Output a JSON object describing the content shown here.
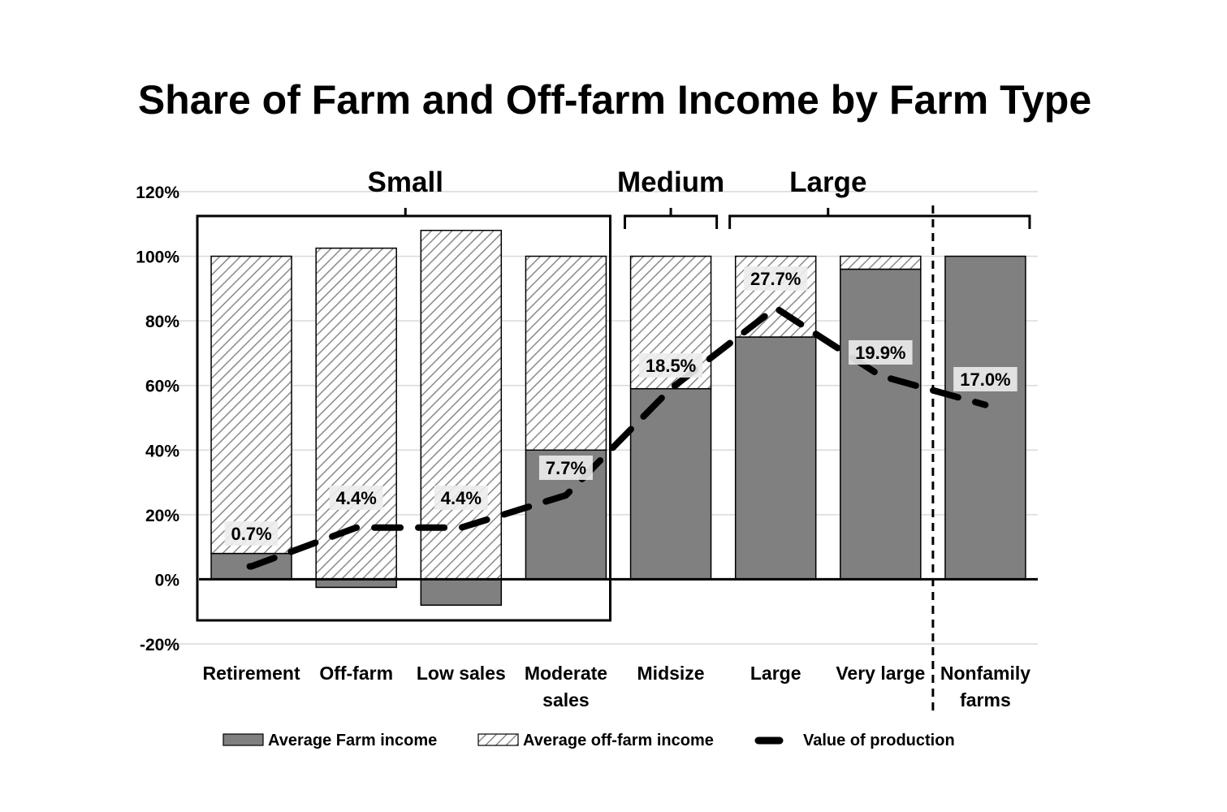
{
  "chart_data": {
    "type": "bar",
    "title": "Share of Farm and Off-farm Income by Farm Type",
    "categories": [
      [
        "Retirement"
      ],
      [
        "Off-farm"
      ],
      [
        "Low sales"
      ],
      [
        "Moderate",
        "sales"
      ],
      [
        "Midsize"
      ],
      [
        "Large"
      ],
      [
        "Very large"
      ],
      [
        "Nonfamily",
        "farms"
      ]
    ],
    "series": [
      {
        "name": "Average Farm income",
        "kind": "bar-solid",
        "color": "#808080",
        "values": [
          8,
          -2.5,
          -8,
          40,
          59,
          75,
          96,
          100
        ]
      },
      {
        "name": "Average off-farm income",
        "kind": "bar-hatched",
        "color": "#ffffff",
        "values": [
          92,
          102.5,
          108,
          60,
          41,
          25,
          4,
          0
        ]
      },
      {
        "name": "Value of production",
        "kind": "line-dashed",
        "color": "#000000",
        "values": [
          0.7,
          4.4,
          4.4,
          7.7,
          18.5,
          27.7,
          19.9,
          17.0
        ],
        "labels": [
          "0.7%",
          "4.4%",
          "4.4%",
          "7.7%",
          "18.5%",
          "27.7%",
          "19.9%",
          "17.0%"
        ],
        "line_path_y": [
          4,
          16,
          16,
          26,
          59,
          84,
          63,
          54
        ]
      }
    ],
    "ylim": [
      -20,
      120
    ],
    "yticks": [
      -20,
      0,
      20,
      40,
      60,
      80,
      100,
      120
    ],
    "ytick_labels": [
      "-20%",
      "0%",
      "20%",
      "40%",
      "60%",
      "80%",
      "100%",
      "120%"
    ],
    "grid": true,
    "legend_position": "bottom",
    "groups": [
      {
        "label": "Small",
        "from": 0,
        "to": 3
      },
      {
        "label": "Medium",
        "from": 4,
        "to": 4
      },
      {
        "label": "Large",
        "from": 5,
        "to": 6
      }
    ],
    "separator_after_index": 6
  }
}
